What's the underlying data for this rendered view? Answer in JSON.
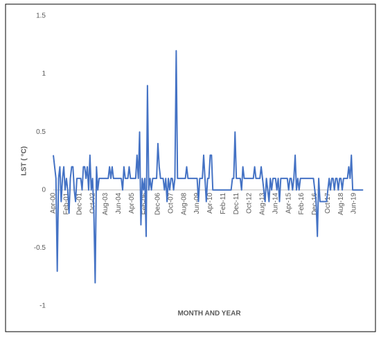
{
  "chart_data": {
    "type": "line",
    "x_label": "MONTH AND YEAR",
    "y_label": "LST ( °C)",
    "color": "#4472c4",
    "ylim": [
      -1,
      1.5
    ],
    "yticks": [
      -1,
      -0.5,
      0,
      0.5,
      1,
      1.5
    ],
    "categories": [
      "Apr-00",
      null,
      null,
      null,
      null,
      null,
      null,
      null,
      null,
      null,
      "Feb-01",
      null,
      null,
      null,
      null,
      null,
      null,
      null,
      null,
      null,
      "Dec-01",
      null,
      null,
      null,
      null,
      null,
      null,
      null,
      null,
      null,
      "Oct-02",
      null,
      null,
      null,
      null,
      null,
      null,
      null,
      null,
      null,
      "Aug-03",
      null,
      null,
      null,
      null,
      null,
      null,
      null,
      null,
      null,
      "Jun-04",
      null,
      null,
      null,
      null,
      null,
      null,
      null,
      null,
      null,
      "Apr-05",
      null,
      null,
      null,
      null,
      null,
      null,
      null,
      null,
      null,
      "Feb-06",
      null,
      null,
      null,
      null,
      null,
      null,
      null,
      null,
      null,
      "Dec-06",
      null,
      null,
      null,
      null,
      null,
      null,
      null,
      null,
      null,
      "Oct-07",
      null,
      null,
      null,
      null,
      null,
      null,
      null,
      null,
      null,
      "Aug-08",
      null,
      null,
      null,
      null,
      null,
      null,
      null,
      null,
      null,
      "Jun-09",
      null,
      null,
      null,
      null,
      null,
      null,
      null,
      null,
      null,
      "Apr-10",
      null,
      null,
      null,
      null,
      null,
      null,
      null,
      null,
      null,
      "Feb-11",
      null,
      null,
      null,
      null,
      null,
      null,
      null,
      null,
      null,
      "Dec-11",
      null,
      null,
      null,
      null,
      null,
      null,
      null,
      null,
      null,
      "Oct-12",
      null,
      null,
      null,
      null,
      null,
      null,
      null,
      null,
      null,
      "Aug-13",
      null,
      null,
      null,
      null,
      null,
      null,
      null,
      null,
      null,
      "Jun-14",
      null,
      null,
      null,
      null,
      null,
      null,
      null,
      null,
      null,
      "Apr-15",
      null,
      null,
      null,
      null,
      null,
      null,
      null,
      null,
      null,
      "Feb-16",
      null,
      null,
      null,
      null,
      null,
      null,
      null,
      null,
      null,
      "Dec-16",
      null,
      null,
      null,
      null,
      null,
      null,
      null,
      null,
      null,
      "Oct-17",
      null,
      null,
      null,
      null,
      null,
      null,
      null,
      null,
      null,
      "Aug-18",
      null,
      null,
      null,
      null,
      null,
      null,
      null,
      null,
      null,
      "Jun-19",
      null,
      null,
      null,
      null,
      null,
      null,
      null
    ],
    "values": [
      0.3,
      0.2,
      0.1,
      -0.7,
      0.1,
      0.2,
      -0.1,
      0.1,
      0.2,
      0,
      0.1,
      0,
      -0.2,
      0.1,
      0.2,
      0.2,
      0,
      -0.1,
      0.1,
      0.1,
      0.1,
      0.1,
      0,
      0.2,
      0.2,
      0.1,
      0.2,
      0,
      0.3,
      0,
      0.1,
      -0.2,
      -0.8,
      0.2,
      0,
      0.1,
      0.1,
      0.1,
      0.1,
      0.1,
      0.1,
      0.1,
      0.1,
      0.2,
      0.1,
      0.2,
      0.1,
      0.1,
      0.1,
      0.1,
      0.1,
      0.1,
      0.1,
      0,
      0.2,
      0.1,
      0.1,
      0.1,
      0.2,
      0.1,
      0.1,
      0.1,
      0.1,
      0.1,
      0.3,
      0.1,
      0.5,
      -0.3,
      0.1,
      0,
      0.1,
      -0.4,
      0.9,
      0,
      0.1,
      0,
      0.1,
      0.1,
      0.1,
      0.1,
      0.4,
      0.2,
      0.1,
      0.1,
      0.1,
      0,
      0.1,
      -0.1,
      0.1,
      0,
      0.1,
      0.1,
      0,
      0.1,
      1.2,
      0.1,
      0.1,
      0.1,
      0.1,
      0.1,
      0.1,
      0.1,
      0.2,
      0.1,
      0.1,
      0.1,
      0.1,
      0.1,
      0.1,
      0.1,
      0.1,
      -0.1,
      0.1,
      0.1,
      0.1,
      0.3,
      0.1,
      -0.1,
      0.1,
      0.1,
      0.3,
      0.3,
      0,
      0,
      0,
      0,
      0,
      0,
      0,
      0,
      0,
      0,
      0,
      0,
      0,
      0,
      0,
      0.1,
      0.1,
      0.5,
      0.1,
      0.1,
      0.1,
      0.1,
      0,
      0.2,
      0.1,
      0.1,
      0.1,
      0.1,
      0.1,
      0.1,
      0.1,
      0.1,
      0.2,
      0.1,
      0.1,
      0.1,
      0.1,
      0.2,
      0.1,
      0,
      -0.1,
      0.1,
      0,
      -0.1,
      0.1,
      0,
      0.1,
      0.1,
      0.1,
      0,
      0.1,
      -0.1,
      0.1,
      0.1,
      0.1,
      0.1,
      0.1,
      0.1,
      0,
      0.1,
      0.1,
      0,
      0.1,
      0.3,
      0,
      0.1,
      0,
      0.1,
      0.1,
      0.1,
      0.1,
      0.1,
      0.1,
      0.1,
      0.1,
      0.1,
      0.1,
      0.1,
      0,
      -0.1,
      -0.4,
      0.1,
      -0.1,
      -0.1,
      -0.1,
      -0.1,
      -0.1,
      -0.1,
      0,
      0.1,
      0,
      0.1,
      0.1,
      0,
      0.1,
      0.1,
      0,
      0.1,
      0.1,
      0,
      0.1,
      0.1,
      0.1,
      0.1,
      0.2,
      0.1,
      0.3,
      0,
      0,
      0,
      0,
      0,
      0,
      0,
      0,
      0
    ]
  }
}
